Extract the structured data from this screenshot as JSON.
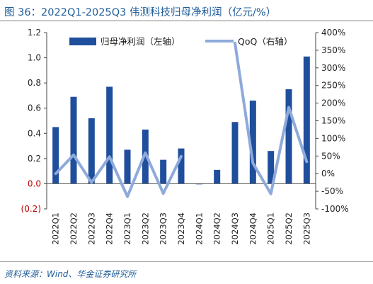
{
  "title": "图 36：2022Q1-2025Q3 伟测科技归母净利润（亿元/%）",
  "source": "资料来源：Wind、华金证券研究所",
  "chart_data": {
    "type": "bar",
    "categories": [
      "2022Q1",
      "2022Q2",
      "2022Q3",
      "2022Q4",
      "2023Q1",
      "2023Q2",
      "2023Q3",
      "2023Q4",
      "2024Q1",
      "2024Q2",
      "2024Q3",
      "2024Q4",
      "2025Q1",
      "2025Q2",
      "2025Q3"
    ],
    "series": [
      {
        "name": "归母净利润（左轴）",
        "type": "bar",
        "axis": "left",
        "color": "#1f4e9c",
        "values": [
          0.45,
          0.69,
          0.52,
          0.77,
          0.27,
          0.43,
          0.19,
          0.28,
          -0.005,
          0.11,
          0.49,
          0.66,
          0.26,
          0.75,
          1.01
        ]
      },
      {
        "name": "QoQ（右轴）",
        "type": "line",
        "axis": "right",
        "color": "#8eaadb",
        "values": [
          0,
          53,
          -25,
          48,
          -65,
          59,
          -56,
          49,
          null,
          null,
          370,
          30,
          -57,
          188,
          34
        ]
      }
    ],
    "left_axis": {
      "ylim": [
        -0.2,
        1.2
      ],
      "ticks": [
        "(0.2)",
        "0.0",
        "0.2",
        "0.4",
        "0.6",
        "0.8",
        "1.0",
        "1.2"
      ]
    },
    "right_axis": {
      "ylim": [
        -100,
        400
      ],
      "ticks": [
        "-100%",
        "-50%",
        "0%",
        "50%",
        "100%",
        "150%",
        "200%",
        "250%",
        "300%",
        "350%",
        "400%"
      ]
    },
    "legend_position": "top"
  }
}
